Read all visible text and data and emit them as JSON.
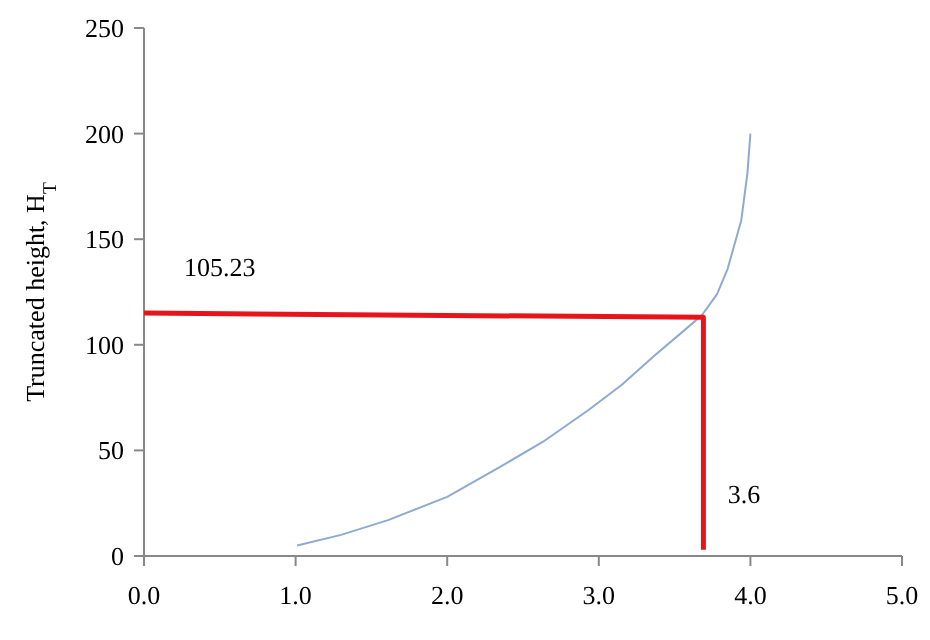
{
  "chart_data": {
    "type": "line",
    "ylabel": "Truncated height, H$_{T}$",
    "xlim": [
      0,
      5
    ],
    "ylim": [
      0,
      250
    ],
    "xticks": [
      {
        "value": 0,
        "label": "0.0"
      },
      {
        "value": 1,
        "label": "1.0"
      },
      {
        "value": 2,
        "label": "2.0"
      },
      {
        "value": 3,
        "label": "3.0"
      },
      {
        "value": 4,
        "label": "4.0"
      },
      {
        "value": 5,
        "label": "5.0"
      }
    ],
    "yticks": [
      0,
      50,
      100,
      150,
      200,
      250
    ],
    "grid": false,
    "marker": "none",
    "line_style": "solid",
    "series": [
      {
        "color": "#8eaad0",
        "x": [
          1.01,
          1.3,
          1.61,
          2.0,
          2.32,
          2.63,
          2.93,
          3.15,
          3.37,
          3.55,
          3.68,
          3.78,
          3.85,
          3.94,
          3.98,
          4.0
        ],
        "values": [
          5,
          10,
          17,
          28,
          41,
          54,
          69,
          81,
          95,
          106,
          114,
          124,
          136,
          159,
          181,
          200
        ]
      },
      {
        "color": "#e8141c",
        "x": [
          0,
          3.69,
          3.69
        ],
        "values": [
          115,
          113,
          3
        ]
      }
    ],
    "annotations": [
      "105.23",
      "3.6"
    ]
  }
}
